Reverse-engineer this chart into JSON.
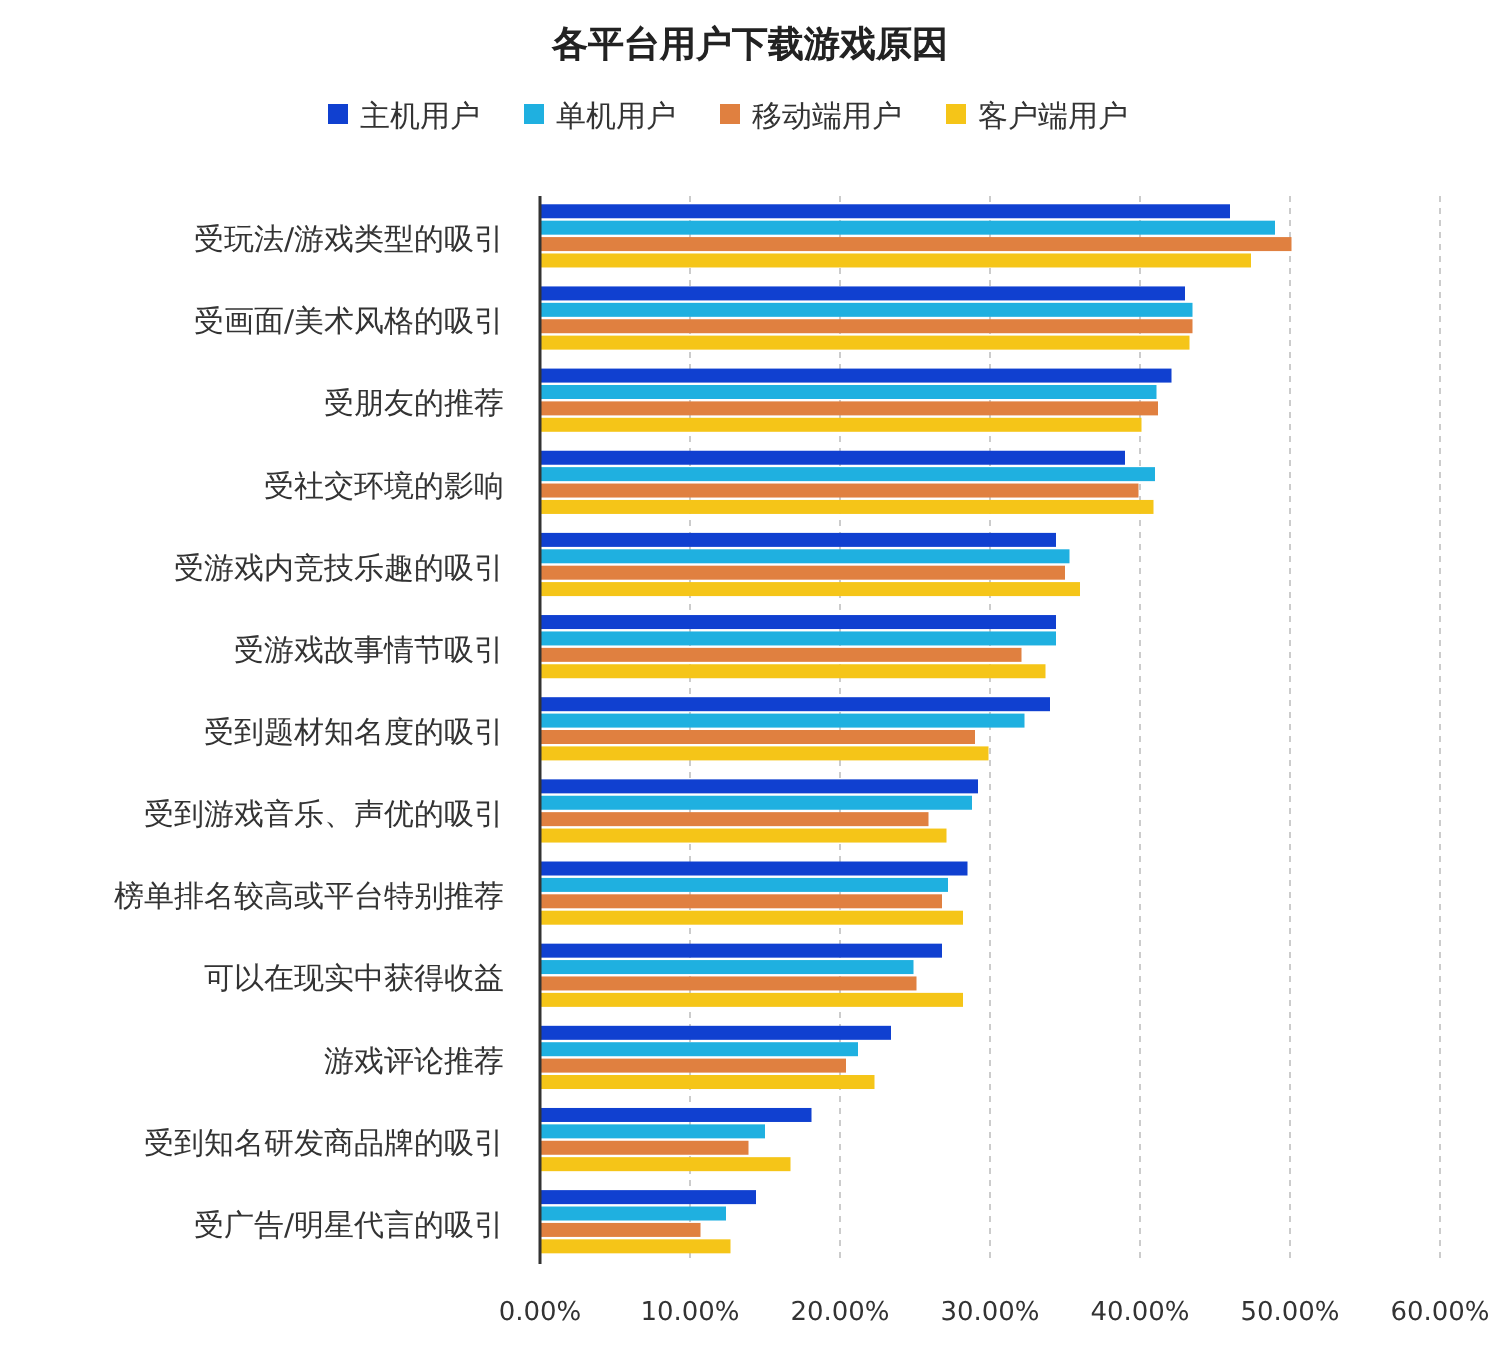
{
  "chart_data": {
    "type": "bar",
    "orientation": "horizontal",
    "title": "各平台用户下载游戏原因",
    "categories": [
      "受玩法/游戏类型的吸引",
      "受画面/美术风格的吸引",
      "受朋友的推荐",
      "受社交环境的影响",
      "受游戏内竞技乐趣的吸引",
      "受游戏故事情节吸引",
      "受到题材知名度的吸引",
      "受到游戏音乐、声优的吸引",
      "榜单排名较高或平台特别推荐",
      "可以在现实中获得收益",
      "游戏评论推荐",
      "受到知名研发商品牌的吸引",
      "受广告/明星代言的吸引"
    ],
    "series": [
      {
        "name": "主机用户",
        "color": "#1040d0",
        "values": [
          46.0,
          43.0,
          42.1,
          39.0,
          34.4,
          34.4,
          34.0,
          29.2,
          28.5,
          26.8,
          23.4,
          18.1,
          14.4
        ]
      },
      {
        "name": "单机用户",
        "color": "#1fb0e0",
        "values": [
          49.0,
          43.5,
          41.1,
          41.0,
          35.3,
          34.4,
          32.3,
          28.8,
          27.2,
          24.9,
          21.2,
          15.0,
          12.4
        ]
      },
      {
        "name": "移动端用户",
        "color": "#e08040",
        "values": [
          50.1,
          43.5,
          41.2,
          39.9,
          35.0,
          32.1,
          29.0,
          25.9,
          26.8,
          25.1,
          20.4,
          13.9,
          10.7
        ]
      },
      {
        "name": "客户端用户",
        "color": "#f5c518",
        "values": [
          47.4,
          43.3,
          40.1,
          40.9,
          36.0,
          33.7,
          29.9,
          27.1,
          28.2,
          28.2,
          22.3,
          16.7,
          12.7
        ]
      }
    ],
    "xlim": [
      0,
      60
    ],
    "xticks": [
      {
        "value": 0,
        "label": "0.00%"
      },
      {
        "value": 10,
        "label": "10.00%"
      },
      {
        "value": 20,
        "label": "20.00%"
      },
      {
        "value": 30,
        "label": "30.00%"
      },
      {
        "value": 40,
        "label": "40.00%"
      },
      {
        "value": 50,
        "label": "50.00%"
      },
      {
        "value": 60,
        "label": "60.00%"
      }
    ],
    "grid": "x",
    "legend": "top"
  }
}
